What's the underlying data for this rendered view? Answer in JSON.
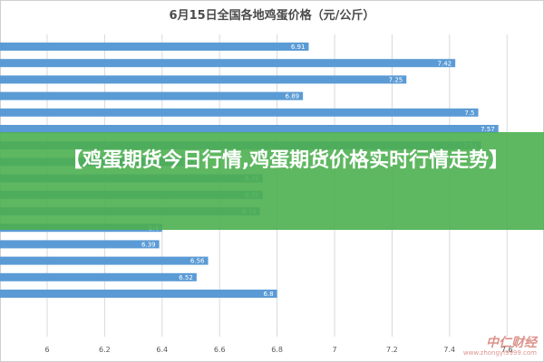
{
  "chart_data": {
    "type": "bar",
    "orientation": "horizontal",
    "title": "6月15日全国各地鸡蛋价格（元/公斤）",
    "xlabel": "",
    "ylabel": "",
    "xlim": [
      6,
      8
    ],
    "x_ticks": [
      "6",
      "6.2",
      "6.4",
      "6.6",
      "6.8",
      "7",
      "7.2",
      "7.4",
      "7.6"
    ],
    "values": [
      6.91,
      7.42,
      7.25,
      6.89,
      7.5,
      7.57,
      7.51,
      6.53,
      6.75,
      6.75,
      6.74,
      6.4,
      6.39,
      6.56,
      6.52,
      6.8
    ],
    "value_labels": [
      "6.91",
      "7.42",
      "7.25",
      "6.89",
      "7.5",
      "7.57",
      "7.51",
      "6.53",
      "6.75",
      "6.75",
      "6.74",
      "6.4",
      "6.39",
      "6.56",
      "6.52",
      "6.8"
    ],
    "bar_color": "#5b9bd5",
    "grid": true
  },
  "banner": {
    "text": "【鸡蛋期货今日行情,鸡蛋期货价格实时行情走势】",
    "color": "#4caf50"
  },
  "watermark": {
    "brand": "中仁财经",
    "url": "www.zhongyi9999.com"
  }
}
